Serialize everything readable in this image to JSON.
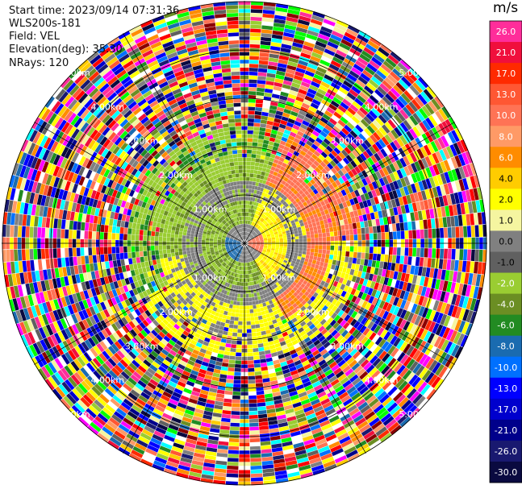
{
  "info": {
    "start_time": "Start time: 2023/09/14 07:31:36",
    "site": "WLS200s-181",
    "field": "Field: VEL",
    "elevation": "Elevation(deg): 35.30",
    "nrays": "NRays: 120"
  },
  "ring_labels": [
    "1.00km",
    "2.00km",
    "3.00km",
    "4.00km",
    "5.00km"
  ],
  "colorbar": {
    "unit": "m/s",
    "ticks": [
      "26.0",
      "21.0",
      "17.0",
      "13.0",
      "10.0",
      "8.0",
      "6.0",
      "4.0",
      "2.0",
      "1.0",
      "0.0",
      "-1.0",
      "-2.0",
      "-4.0",
      "-6.0",
      "-8.0",
      "-10.0",
      "-13.0",
      "-17.0",
      "-21.0",
      "-26.0",
      "-30.0"
    ],
    "colors": [
      "#ff2d9a",
      "#f00f3c",
      "#ff2a00",
      "#ff5733",
      "#ff7355",
      "#ff9a66",
      "#ff8c00",
      "#ffcc00",
      "#ffff00",
      "#f5f5a0",
      "#808080",
      "#606060",
      "#9acd32",
      "#6b8e23",
      "#228b22",
      "#1a6bb0",
      "#0070ff",
      "#0000ff",
      "#0000cd",
      "#00008b",
      "#191970",
      "#0a0a40"
    ]
  },
  "chart_data": {
    "type": "ppi_radar",
    "field": "VEL",
    "units": "m/s",
    "elevation_deg": 35.3,
    "nrays": 120,
    "range_rings_km": [
      1,
      2,
      3,
      4,
      5
    ],
    "max_range_km": 5
  }
}
